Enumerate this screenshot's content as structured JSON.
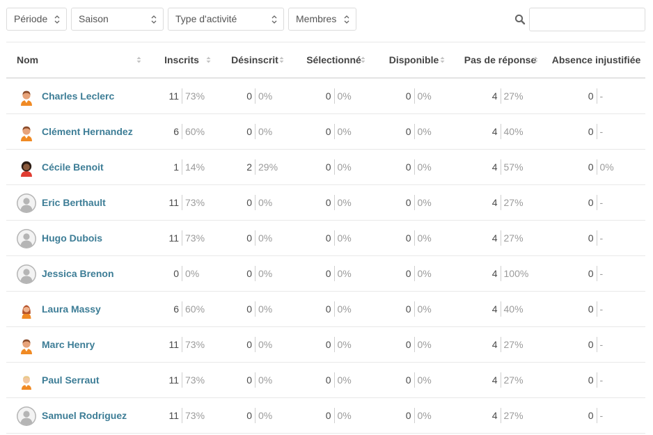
{
  "filters": {
    "period_label": "Période",
    "season_label": "Saison",
    "activity_type_label": "Type d'activité",
    "members_label": "Membres",
    "search_placeholder": "",
    "search_value": ""
  },
  "table": {
    "columns": {
      "name": "Nom",
      "registered": "Inscrits",
      "unregistered": "Désinscrit",
      "selected": "Sélectionné",
      "available": "Disponible",
      "no_answer": "Pas de réponse",
      "unjustified_absence": "Absence injustifiée"
    },
    "rows": [
      {
        "name": "Charles Leclerc",
        "avatar": "male-orange-avatar-icon",
        "registered": {
          "count": "11",
          "pct": "73%"
        },
        "unregistered": {
          "count": "0",
          "pct": "0%"
        },
        "selected": {
          "count": "0",
          "pct": "0%"
        },
        "available": {
          "count": "0",
          "pct": "0%"
        },
        "no_answer": {
          "count": "4",
          "pct": "27%"
        },
        "unjustified_absence": {
          "count": "0",
          "pct": "-"
        }
      },
      {
        "name": "Clément Hernandez",
        "avatar": "male-orange-avatar-icon",
        "registered": {
          "count": "6",
          "pct": "60%"
        },
        "unregistered": {
          "count": "0",
          "pct": "0%"
        },
        "selected": {
          "count": "0",
          "pct": "0%"
        },
        "available": {
          "count": "0",
          "pct": "0%"
        },
        "no_answer": {
          "count": "4",
          "pct": "40%"
        },
        "unjustified_absence": {
          "count": "0",
          "pct": "-"
        }
      },
      {
        "name": "Cécile Benoit",
        "avatar": "female-red-avatar-icon",
        "registered": {
          "count": "1",
          "pct": "14%"
        },
        "unregistered": {
          "count": "2",
          "pct": "29%"
        },
        "selected": {
          "count": "0",
          "pct": "0%"
        },
        "available": {
          "count": "0",
          "pct": "0%"
        },
        "no_answer": {
          "count": "4",
          "pct": "57%"
        },
        "unjustified_absence": {
          "count": "0",
          "pct": "0%"
        }
      },
      {
        "name": "Eric Berthault",
        "avatar": "default-user-avatar-icon",
        "registered": {
          "count": "11",
          "pct": "73%"
        },
        "unregistered": {
          "count": "0",
          "pct": "0%"
        },
        "selected": {
          "count": "0",
          "pct": "0%"
        },
        "available": {
          "count": "0",
          "pct": "0%"
        },
        "no_answer": {
          "count": "4",
          "pct": "27%"
        },
        "unjustified_absence": {
          "count": "0",
          "pct": "-"
        }
      },
      {
        "name": "Hugo Dubois",
        "avatar": "default-user-avatar-icon",
        "registered": {
          "count": "11",
          "pct": "73%"
        },
        "unregistered": {
          "count": "0",
          "pct": "0%"
        },
        "selected": {
          "count": "0",
          "pct": "0%"
        },
        "available": {
          "count": "0",
          "pct": "0%"
        },
        "no_answer": {
          "count": "4",
          "pct": "27%"
        },
        "unjustified_absence": {
          "count": "0",
          "pct": "-"
        }
      },
      {
        "name": "Jessica Brenon",
        "avatar": "default-user-avatar-icon",
        "registered": {
          "count": "0",
          "pct": "0%"
        },
        "unregistered": {
          "count": "0",
          "pct": "0%"
        },
        "selected": {
          "count": "0",
          "pct": "0%"
        },
        "available": {
          "count": "0",
          "pct": "0%"
        },
        "no_answer": {
          "count": "4",
          "pct": "100%"
        },
        "unjustified_absence": {
          "count": "0",
          "pct": "-"
        }
      },
      {
        "name": "Laura Massy",
        "avatar": "female-orange-avatar-icon",
        "registered": {
          "count": "6",
          "pct": "60%"
        },
        "unregistered": {
          "count": "0",
          "pct": "0%"
        },
        "selected": {
          "count": "0",
          "pct": "0%"
        },
        "available": {
          "count": "0",
          "pct": "0%"
        },
        "no_answer": {
          "count": "4",
          "pct": "40%"
        },
        "unjustified_absence": {
          "count": "0",
          "pct": "-"
        }
      },
      {
        "name": "Marc Henry",
        "avatar": "male-orange-avatar-icon",
        "registered": {
          "count": "11",
          "pct": "73%"
        },
        "unregistered": {
          "count": "0",
          "pct": "0%"
        },
        "selected": {
          "count": "0",
          "pct": "0%"
        },
        "available": {
          "count": "0",
          "pct": "0%"
        },
        "no_answer": {
          "count": "4",
          "pct": "27%"
        },
        "unjustified_absence": {
          "count": "0",
          "pct": "-"
        }
      },
      {
        "name": "Paul Serraut",
        "avatar": "male-blond-avatar-icon",
        "registered": {
          "count": "11",
          "pct": "73%"
        },
        "unregistered": {
          "count": "0",
          "pct": "0%"
        },
        "selected": {
          "count": "0",
          "pct": "0%"
        },
        "available": {
          "count": "0",
          "pct": "0%"
        },
        "no_answer": {
          "count": "4",
          "pct": "27%"
        },
        "unjustified_absence": {
          "count": "0",
          "pct": "-"
        }
      },
      {
        "name": "Samuel Rodriguez",
        "avatar": "default-user-avatar-icon",
        "registered": {
          "count": "11",
          "pct": "73%"
        },
        "unregistered": {
          "count": "0",
          "pct": "0%"
        },
        "selected": {
          "count": "0",
          "pct": "0%"
        },
        "available": {
          "count": "0",
          "pct": "0%"
        },
        "no_answer": {
          "count": "4",
          "pct": "27%"
        },
        "unjustified_absence": {
          "count": "0",
          "pct": "-"
        }
      }
    ]
  },
  "colors": {
    "link": "#3d7d96",
    "muted": "#9b9b9b",
    "border": "#e8e8e8",
    "avatar_orange": "#f08a24",
    "avatar_red": "#e03c31",
    "avatar_default": "#b5b5b5"
  }
}
